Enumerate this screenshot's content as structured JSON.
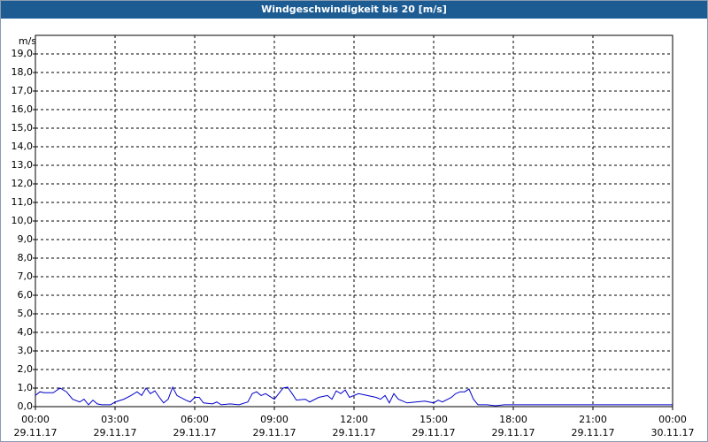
{
  "chart_data": {
    "type": "line",
    "title": "Windgeschwindigkeit bis 20 [m/s]",
    "y_label": "m/s",
    "x": [
      0,
      0.17,
      0.33,
      0.67,
      0.93,
      1.17,
      1.4,
      1.67,
      1.83,
      2.0,
      2.17,
      2.33,
      2.5,
      2.83,
      3.0,
      3.33,
      3.6,
      3.83,
      4.0,
      4.17,
      4.33,
      4.5,
      4.67,
      4.83,
      5.0,
      5.17,
      5.33,
      5.67,
      5.83,
      6.0,
      6.17,
      6.33,
      6.67,
      6.83,
      7.0,
      7.33,
      7.67,
      8.0,
      8.17,
      8.33,
      8.5,
      8.67,
      8.83,
      9.0,
      9.33,
      9.5,
      9.67,
      9.83,
      10.17,
      10.33,
      10.67,
      11.0,
      11.17,
      11.33,
      11.5,
      11.67,
      11.83,
      12.17,
      12.5,
      12.83,
      13.0,
      13.17,
      13.33,
      13.5,
      13.67,
      14.0,
      14.33,
      14.67,
      15.0,
      15.17,
      15.33,
      15.67,
      15.83,
      16.0,
      16.17,
      16.33,
      16.5,
      16.67,
      17.0,
      17.33,
      17.67,
      18,
      24
    ],
    "series": [
      {
        "name": "Windgeschwindigkeit",
        "color": "#0000cc",
        "values": [
          0.6,
          0.8,
          0.75,
          0.75,
          1.0,
          0.8,
          0.4,
          0.25,
          0.4,
          0.1,
          0.35,
          0.15,
          0.1,
          0.1,
          0.25,
          0.4,
          0.6,
          0.8,
          0.6,
          1.0,
          0.7,
          0.85,
          0.5,
          0.2,
          0.4,
          1.05,
          0.6,
          0.35,
          0.25,
          0.5,
          0.5,
          0.2,
          0.15,
          0.25,
          0.1,
          0.15,
          0.1,
          0.25,
          0.7,
          0.8,
          0.6,
          0.7,
          0.55,
          0.4,
          1.0,
          1.05,
          0.7,
          0.35,
          0.4,
          0.25,
          0.5,
          0.6,
          0.4,
          0.85,
          0.7,
          0.9,
          0.5,
          0.7,
          0.6,
          0.5,
          0.4,
          0.6,
          0.2,
          0.7,
          0.4,
          0.2,
          0.25,
          0.3,
          0.2,
          0.35,
          0.25,
          0.5,
          0.7,
          0.8,
          0.8,
          0.95,
          0.4,
          0.1,
          0.1,
          0.05,
          0.1,
          0.1,
          0.1
        ]
      }
    ],
    "xlim": [
      0,
      24
    ],
    "xticks": [
      {
        "value": 0,
        "label": "00:00",
        "date": "29.11.17"
      },
      {
        "value": 3,
        "label": "03:00",
        "date": "29.11.17"
      },
      {
        "value": 6,
        "label": "06:00",
        "date": "29.11.17"
      },
      {
        "value": 9,
        "label": "09:00",
        "date": "29.11.17"
      },
      {
        "value": 12,
        "label": "12:00",
        "date": "29.11.17"
      },
      {
        "value": 15,
        "label": "15:00",
        "date": "29.11.17"
      },
      {
        "value": 18,
        "label": "18:00",
        "date": "29.11.17"
      },
      {
        "value": 21,
        "label": "21:00",
        "date": "29.11.17"
      },
      {
        "value": 24,
        "label": "00:00",
        "date": "30.11.17"
      }
    ],
    "ylim": [
      0,
      20
    ],
    "yticks": [
      {
        "value": 0,
        "label": "0,0"
      },
      {
        "value": 1,
        "label": "1,0"
      },
      {
        "value": 2,
        "label": "2,0"
      },
      {
        "value": 3,
        "label": "3,0"
      },
      {
        "value": 4,
        "label": "4,0"
      },
      {
        "value": 5,
        "label": "5,0"
      },
      {
        "value": 6,
        "label": "6,0"
      },
      {
        "value": 7,
        "label": "7,0"
      },
      {
        "value": 8,
        "label": "8,0"
      },
      {
        "value": 9,
        "label": "9,0"
      },
      {
        "value": 10,
        "label": "10,0"
      },
      {
        "value": 11,
        "label": "11,0"
      },
      {
        "value": 12,
        "label": "12,0"
      },
      {
        "value": 13,
        "label": "13,0"
      },
      {
        "value": 14,
        "label": "14,0"
      },
      {
        "value": 15,
        "label": "15,0"
      },
      {
        "value": 16,
        "label": "16,0"
      },
      {
        "value": 17,
        "label": "17,0"
      },
      {
        "value": 18,
        "label": "18,0"
      },
      {
        "value": 19,
        "label": "19,0"
      }
    ],
    "grid": true
  }
}
